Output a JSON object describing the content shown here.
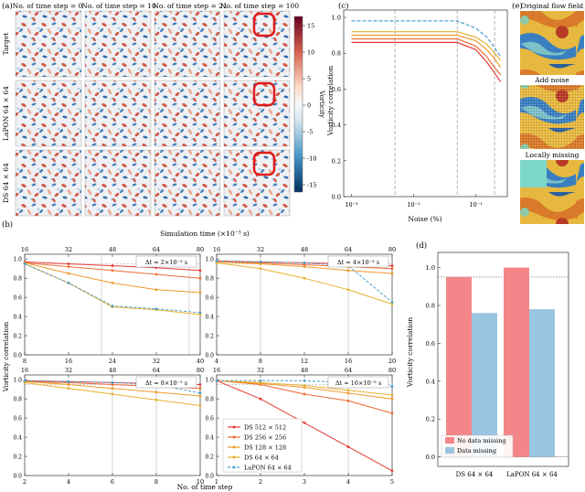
{
  "panel_a": {
    "label": "(a)",
    "col_titles": [
      "No. of time step = 0",
      "No. of time step = 10",
      "No. of time step = 21",
      "No. of time step = 100"
    ],
    "row_labels": [
      "Target",
      "LaPON 64 × 64",
      "DS 64 × 64"
    ],
    "colorbar": {
      "label": "Vorticity",
      "ticks": [
        "15",
        "10",
        "5",
        "0",
        "-5",
        "-10",
        "-15"
      ]
    }
  },
  "panel_e": {
    "label": "(e)",
    "captions": [
      "Original flow field",
      "Add noise",
      "Locally missing"
    ]
  },
  "chart_data": [
    {
      "id": "c",
      "label": "(c)",
      "type": "line",
      "xlabel": "Noise (%)",
      "ylabel": "Vorticity correlation",
      "x_scale": "log",
      "xticks": [
        {
          "v": 0.001,
          "label": "10⁻³"
        },
        {
          "v": 0.01,
          "label": "10⁻²"
        },
        {
          "v": 0.1,
          "label": "10⁻¹"
        }
      ],
      "yticks": [
        "0.0",
        "0.2",
        "0.4",
        "0.6",
        "0.8",
        "1.0"
      ],
      "ylim": [
        0,
        1.0
      ],
      "vlines": [
        0.005,
        0.05,
        0.2
      ],
      "series": [
        {
          "color": "#e8b030",
          "dashed": false,
          "x": [
            0.001,
            0.05,
            0.1,
            0.15,
            0.2,
            0.25
          ],
          "y": [
            0.92,
            0.92,
            0.89,
            0.85,
            0.8,
            0.76
          ]
        },
        {
          "color": "#f09a2c",
          "dashed": false,
          "x": [
            0.001,
            0.05,
            0.1,
            0.15,
            0.2,
            0.25
          ],
          "y": [
            0.9,
            0.9,
            0.87,
            0.82,
            0.77,
            0.72
          ]
        },
        {
          "color": "#ee6b35",
          "dashed": false,
          "x": [
            0.001,
            0.05,
            0.1,
            0.15,
            0.2,
            0.25
          ],
          "y": [
            0.88,
            0.88,
            0.84,
            0.78,
            0.72,
            0.68
          ]
        },
        {
          "color": "#e33a37",
          "dashed": false,
          "x": [
            0.001,
            0.05,
            0.1,
            0.15,
            0.2,
            0.25
          ],
          "y": [
            0.86,
            0.86,
            0.82,
            0.75,
            0.69,
            0.64
          ]
        },
        {
          "color": "#4aa0cc",
          "dashed": true,
          "x": [
            0.001,
            0.05,
            0.1,
            0.15,
            0.2,
            0.25
          ],
          "y": [
            0.98,
            0.98,
            0.94,
            0.89,
            0.83,
            0.78
          ]
        }
      ]
    },
    {
      "id": "b",
      "label": "(b)",
      "type": "line",
      "ylabel": "Vorticity correlation",
      "xlabel": "No. of time step",
      "top_xlabel": "Simulation time (×10⁻³ s)",
      "yticks": [
        "0.0",
        "0.2",
        "0.4",
        "0.6",
        "0.8",
        "1.0"
      ],
      "legend": [
        "DS 512 × 512",
        "DS 256 × 256",
        "DS 128 × 128",
        "DS 64 × 64",
        "LaPON 64 × 64"
      ],
      "series_colors": [
        "#e33a37",
        "#ee6b35",
        "#f09a2c",
        "#e8b030",
        "#4aa0cc"
      ],
      "subplots": [
        {
          "dt_label": "Δt = 2×10⁻³ s",
          "xticks": [
            "8",
            "16",
            "24",
            "32",
            "40"
          ],
          "top_ticks": [
            "16",
            "32",
            "48",
            "64",
            "80"
          ],
          "xrange": [
            8,
            40
          ],
          "vlines": [
            22,
            38
          ],
          "series": [
            [
              0.97,
              0.95,
              0.93,
              0.91,
              0.88
            ],
            [
              0.96,
              0.92,
              0.88,
              0.84,
              0.8
            ],
            [
              0.96,
              0.85,
              0.75,
              0.68,
              0.65
            ],
            [
              0.95,
              0.75,
              0.5,
              0.47,
              0.42
            ],
            [
              0.95,
              0.75,
              0.51,
              0.48,
              0.44
            ]
          ]
        },
        {
          "dt_label": "Δt = 4×10⁻³ s",
          "xticks": [
            "4",
            "8",
            "12",
            "16",
            "20"
          ],
          "top_ticks": [
            "16",
            "32",
            "48",
            "64",
            "80"
          ],
          "xrange": [
            4,
            20
          ],
          "vlines": [
            8,
            16
          ],
          "series": [
            [
              0.98,
              0.97,
              0.96,
              0.95,
              0.93
            ],
            [
              0.97,
              0.96,
              0.94,
              0.92,
              0.9
            ],
            [
              0.97,
              0.95,
              0.92,
              0.88,
              0.85
            ],
            [
              0.96,
              0.9,
              0.8,
              0.68,
              0.53
            ],
            [
              0.98,
              0.97,
              0.96,
              0.93,
              0.55
            ]
          ]
        },
        {
          "dt_label": "Δt = 8×10⁻³ s",
          "xticks": [
            "2",
            "4",
            "6",
            "8",
            "10"
          ],
          "top_ticks": [
            "16",
            "32",
            "48",
            "64",
            "80"
          ],
          "xrange": [
            2,
            10
          ],
          "vlines": [
            6,
            8
          ],
          "series": [
            [
              0.99,
              0.98,
              0.97,
              0.96,
              0.95
            ],
            [
              0.98,
              0.97,
              0.95,
              0.93,
              0.91
            ],
            [
              0.98,
              0.95,
              0.91,
              0.87,
              0.83
            ],
            [
              0.97,
              0.91,
              0.85,
              0.79,
              0.73
            ],
            [
              0.99,
              0.98,
              0.97,
              0.95,
              0.86
            ]
          ]
        },
        {
          "dt_label": "Δt = 16×10⁻³ s",
          "xticks": [
            "1",
            "2",
            "3",
            "4",
            "5"
          ],
          "top_ticks": [
            "16",
            "32",
            "48",
            "64",
            "80"
          ],
          "xrange": [
            1,
            5
          ],
          "vlines": [
            4
          ],
          "series": [
            [
              0.99,
              0.8,
              0.55,
              0.3,
              0.05
            ],
            [
              0.99,
              0.95,
              0.85,
              0.78,
              0.65
            ],
            [
              0.99,
              0.96,
              0.92,
              0.86,
              0.8
            ],
            [
              0.99,
              0.97,
              0.94,
              0.89,
              0.84
            ],
            [
              0.99,
              0.99,
              0.99,
              0.97,
              0.93
            ]
          ]
        }
      ]
    },
    {
      "id": "d",
      "label": "(d)",
      "type": "bar",
      "ylabel": "Vorticity correlation",
      "categories": [
        "DS 64 × 64",
        "LaPON 64 × 64"
      ],
      "series": [
        {
          "name": "No data missing",
          "color": "#f4868a",
          "values": [
            0.95,
            1.0
          ]
        },
        {
          "name": "Data missing",
          "color": "#99c5e1",
          "values": [
            0.76,
            0.78
          ]
        }
      ],
      "yticks": [
        "0.0",
        "0.2",
        "0.4",
        "0.6",
        "0.8",
        "1.0"
      ],
      "ylim": [
        -0.05,
        1.08
      ],
      "ref_line": 0.95
    }
  ]
}
